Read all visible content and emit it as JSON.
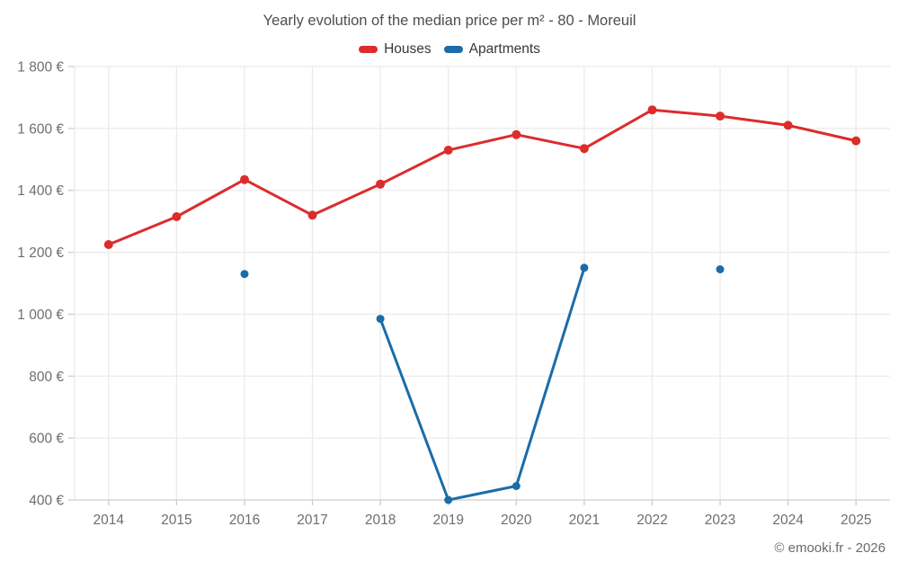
{
  "header": {
    "title": "Yearly evolution of the median price per m² - 80 - Moreuil"
  },
  "legend": {
    "items": [
      {
        "label": "Houses",
        "color": "#dc2c2c"
      },
      {
        "label": "Apartments",
        "color": "#1b6ca8"
      }
    ]
  },
  "footer": {
    "copyright": "© emooki.fr - 2026"
  },
  "chart_data": {
    "type": "line",
    "title": "Yearly evolution of the median price per m² - 80 - Moreuil",
    "categories": [
      "2014",
      "2015",
      "2016",
      "2017",
      "2018",
      "2019",
      "2020",
      "2021",
      "2022",
      "2023",
      "2024",
      "2025"
    ],
    "series": [
      {
        "name": "Houses",
        "color": "#dc2c2c",
        "values": [
          1225,
          1315,
          1435,
          1320,
          1420,
          1530,
          1580,
          1535,
          1660,
          1640,
          1610,
          1560
        ]
      },
      {
        "name": "Apartments",
        "color": "#1b6ca8",
        "values": [
          null,
          null,
          1130,
          null,
          985,
          400,
          445,
          1150,
          null,
          1145,
          null,
          null
        ]
      }
    ],
    "xlabel": "",
    "ylabel": "",
    "ylim": [
      400,
      1800
    ],
    "ytick_values": [
      400,
      600,
      800,
      1000,
      1200,
      1400,
      1600,
      1800
    ],
    "ytick_labels": [
      "400 €",
      "600 €",
      "800 €",
      "1 000 €",
      "1 200 €",
      "1 400 €",
      "1 600 €",
      "1 800 €"
    ],
    "currency": "€",
    "grid": true,
    "legend_position": "top"
  }
}
